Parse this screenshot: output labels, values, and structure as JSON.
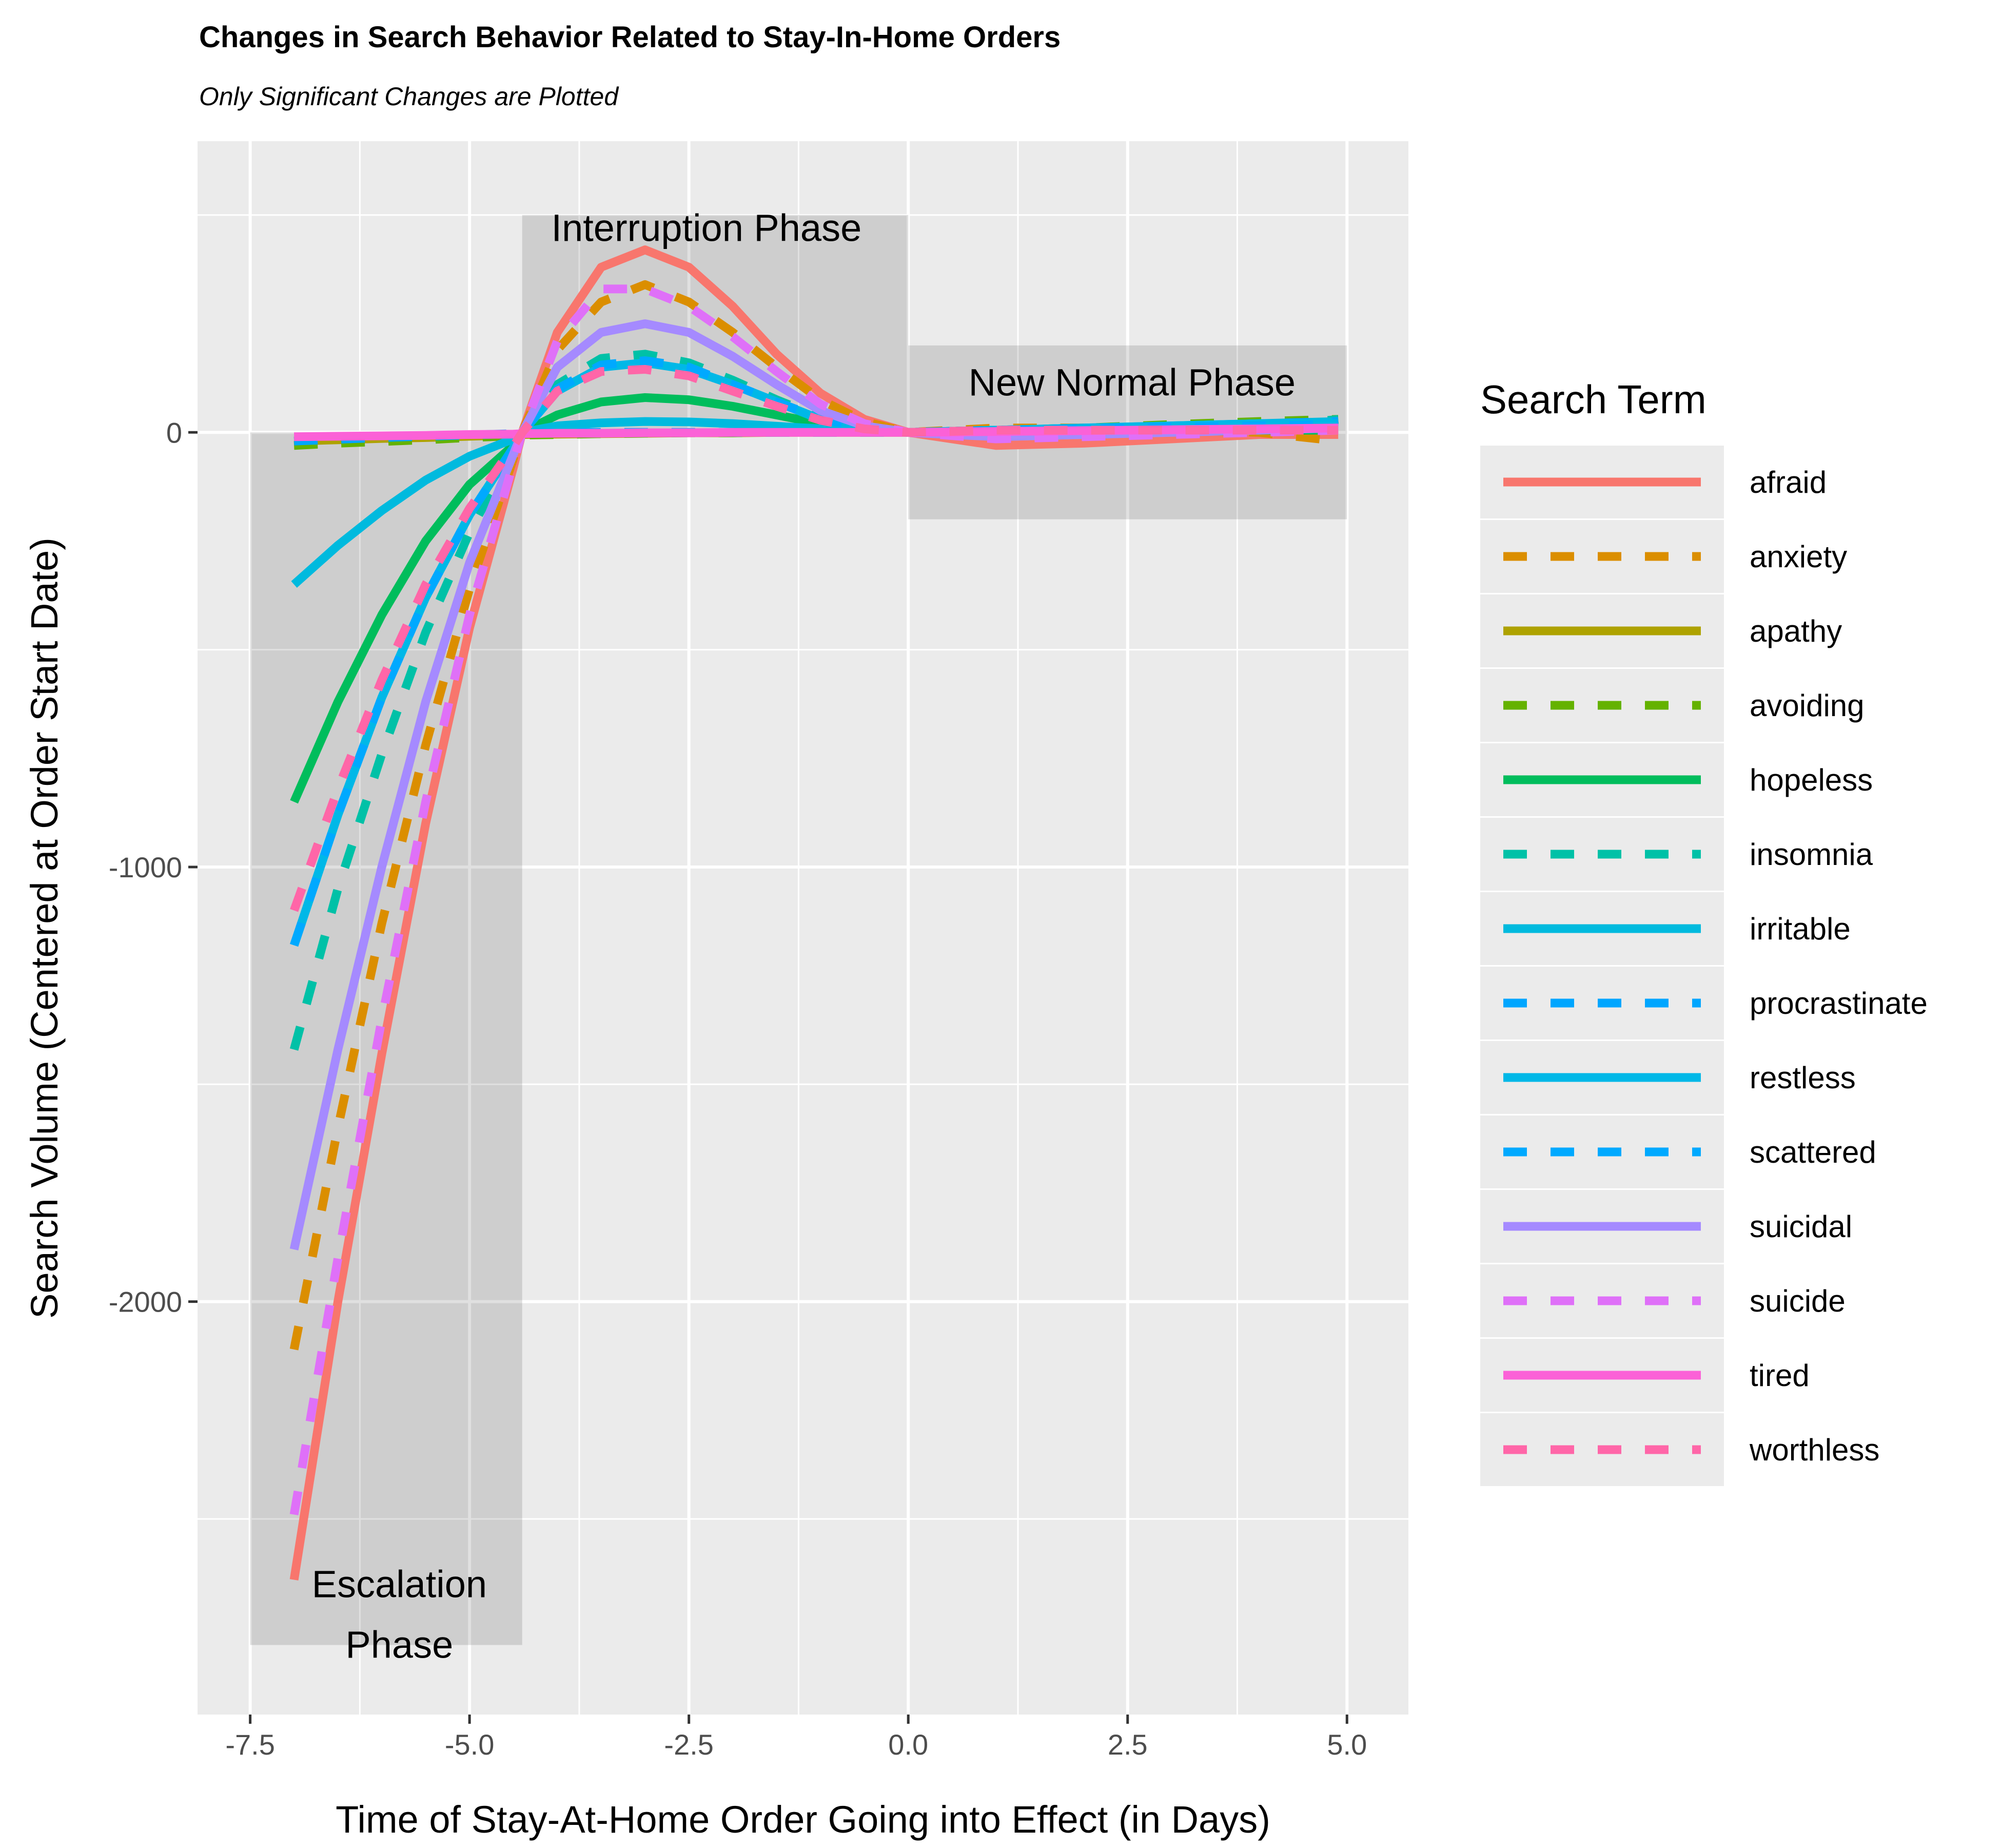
{
  "chart_data": {
    "type": "line",
    "title": "Changes in Search Behavior Related to Stay-In-Home Orders",
    "subtitle": "Only Significant Changes are Plotted",
    "xlabel": "Time of Stay-At-Home Order Going into Effect (in Days)",
    "ylabel": "Search Volume (Centered at Order Start Date)",
    "xlim": [
      -8.1,
      5.7
    ],
    "ylim": [
      -2950,
      670
    ],
    "xticks": [
      -7.5,
      -5.0,
      -2.5,
      0.0,
      2.5,
      5.0
    ],
    "xtick_labels": [
      "-7.5",
      "-5.0",
      "-2.5",
      "0.0",
      "2.5",
      "5.0"
    ],
    "yticks": [
      -2000,
      -1000,
      0
    ],
    "ytick_labels": [
      "-2000",
      "-1000",
      "0"
    ],
    "grid": true,
    "legend": {
      "title": "Search Term",
      "position": "right"
    },
    "phases": [
      {
        "label_lines": [
          "Escalation",
          "Phase"
        ],
        "x": [
          -7.5,
          -4.4
        ],
        "y": [
          -2790,
          0
        ],
        "label_at": [
          -5.8,
          -2680
        ]
      },
      {
        "label_lines": [
          "Interruption Phase"
        ],
        "x": [
          -4.4,
          0.0
        ],
        "y": [
          0,
          500
        ],
        "label_at": [
          -2.3,
          440
        ]
      },
      {
        "label_lines": [
          "New Normal Phase"
        ],
        "x": [
          0.0,
          5.0
        ],
        "y": [
          -200,
          200
        ],
        "label_at": [
          2.55,
          85
        ]
      }
    ],
    "x": [
      -7.0,
      -6.5,
      -6.0,
      -5.5,
      -5.0,
      -4.5,
      -4.4,
      -4.0,
      -3.5,
      -3.0,
      -2.5,
      -2.0,
      -1.5,
      -1.0,
      -0.5,
      0.0,
      1.0,
      2.0,
      3.0,
      4.0,
      4.9
    ],
    "series": [
      {
        "name": "afraid",
        "color": "#F8766D",
        "dash": "solid",
        "values": [
          -2640,
          -2000,
          -1430,
          -900,
          -450,
          -80,
          0,
          230,
          380,
          420,
          380,
          290,
          180,
          90,
          30,
          0,
          -30,
          -25,
          -15,
          -5,
          -5
        ]
      },
      {
        "name": "anxiety",
        "color": "#DB8E00",
        "dash": "dashed",
        "values": [
          -2110,
          -1600,
          -1130,
          -720,
          -360,
          -60,
          0,
          190,
          300,
          340,
          300,
          230,
          150,
          75,
          25,
          0,
          10,
          10,
          5,
          0,
          -20
        ]
      },
      {
        "name": "apathy",
        "color": "#AEA200",
        "dash": "solid",
        "values": [
          -20,
          -17,
          -14,
          -12,
          -9,
          -6,
          -5,
          -4,
          -3,
          -2,
          -1,
          -1,
          0,
          0,
          0,
          0,
          2,
          4,
          6,
          8,
          10
        ]
      },
      {
        "name": "avoiding",
        "color": "#64B200",
        "dash": "dashed",
        "values": [
          -30,
          -25,
          -21,
          -17,
          -12,
          -8,
          -6,
          -5,
          -3,
          -2,
          -1,
          -1,
          0,
          0,
          0,
          0,
          5,
          10,
          18,
          25,
          30
        ]
      },
      {
        "name": "hopeless",
        "color": "#00BD5C",
        "dash": "solid",
        "values": [
          -850,
          -620,
          -420,
          -250,
          -120,
          -30,
          0,
          40,
          70,
          80,
          75,
          60,
          40,
          20,
          5,
          0,
          5,
          5,
          5,
          5,
          5
        ]
      },
      {
        "name": "insomnia",
        "color": "#00C1A7",
        "dash": "dashed",
        "values": [
          -1420,
          -1050,
          -740,
          -460,
          -230,
          -40,
          0,
          110,
          170,
          180,
          160,
          120,
          75,
          35,
          10,
          0,
          5,
          5,
          5,
          10,
          30
        ]
      },
      {
        "name": "irritable",
        "color": "#00BADE",
        "dash": "solid",
        "values": [
          -350,
          -260,
          -180,
          -110,
          -55,
          -15,
          0,
          15,
          22,
          25,
          24,
          20,
          14,
          8,
          3,
          0,
          5,
          10,
          15,
          20,
          25
        ]
      },
      {
        "name": "procrastinate",
        "color": "#00A6FF",
        "dash": "dashed",
        "values": [
          -20,
          -16,
          -12,
          -9,
          -6,
          -3,
          -2,
          -1,
          0,
          0,
          0,
          0,
          0,
          0,
          0,
          0,
          5,
          10,
          15,
          20,
          25
        ]
      },
      {
        "name": "restless",
        "color": "#00B8E7",
        "dash": "solid",
        "values": [
          -1180,
          -880,
          -610,
          -380,
          -190,
          -35,
          0,
          95,
          150,
          160,
          145,
          110,
          70,
          30,
          10,
          0,
          5,
          10,
          15,
          20,
          20
        ]
      },
      {
        "name": "scattered",
        "color": "#00A9FF",
        "dash": "dashed",
        "values": [
          -1180,
          -880,
          -610,
          -380,
          -190,
          -35,
          0,
          100,
          155,
          165,
          150,
          110,
          70,
          32,
          10,
          0,
          5,
          8,
          12,
          15,
          18
        ]
      },
      {
        "name": "suicidal",
        "color": "#A58AFF",
        "dash": "solid",
        "values": [
          -1880,
          -1420,
          -1000,
          -620,
          -300,
          -50,
          0,
          150,
          230,
          250,
          230,
          175,
          110,
          50,
          15,
          0,
          -10,
          -5,
          0,
          5,
          10
        ]
      },
      {
        "name": "suicide",
        "color": "#DF70F8",
        "dash": "dashed",
        "values": [
          -2490,
          -1900,
          -1350,
          -850,
          -420,
          -70,
          0,
          210,
          330,
          330,
          290,
          220,
          140,
          65,
          20,
          0,
          -15,
          -10,
          -5,
          0,
          5
        ]
      },
      {
        "name": "tired",
        "color": "#FB61D7",
        "dash": "solid",
        "values": [
          -10,
          -9,
          -8,
          -7,
          -5,
          -4,
          -3,
          -2,
          -2,
          -1,
          -1,
          0,
          0,
          0,
          0,
          0,
          2,
          4,
          6,
          8,
          10
        ]
      },
      {
        "name": "worthless",
        "color": "#FF66A8",
        "dash": "dashed",
        "values": [
          -1100,
          -820,
          -570,
          -350,
          -175,
          -32,
          0,
          95,
          140,
          145,
          130,
          95,
          60,
          28,
          8,
          0,
          5,
          5,
          5,
          5,
          5
        ]
      }
    ]
  }
}
